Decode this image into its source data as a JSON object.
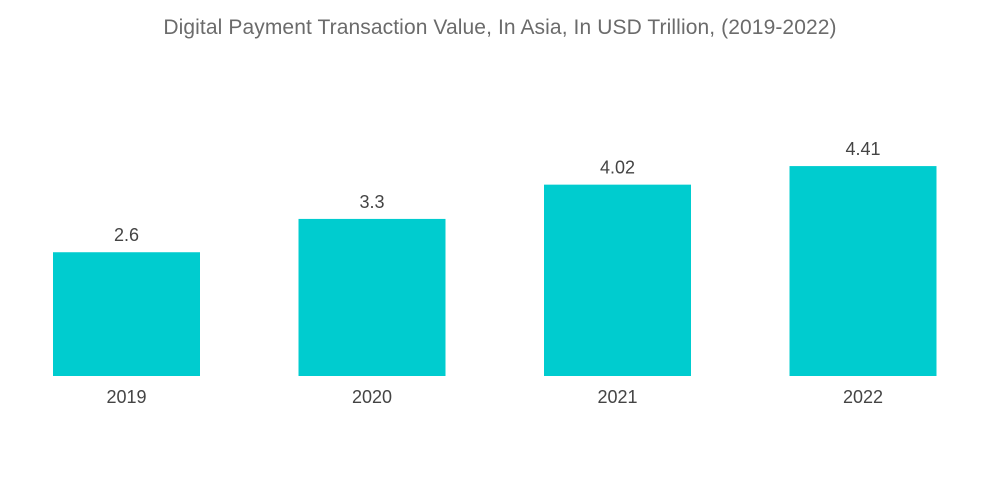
{
  "chart_data": {
    "type": "bar",
    "title": "Digital Payment Transaction Value, In Asia, In USD Trillion, (2019-2022)",
    "categories": [
      "2019",
      "2020",
      "2021",
      "2022"
    ],
    "values": [
      2.6,
      3.3,
      4.02,
      4.41
    ],
    "value_labels": [
      "2.6",
      "3.3",
      "4.02",
      "4.41"
    ],
    "xlabel": "",
    "ylabel": "",
    "ylim": [
      0,
      5.5
    ],
    "grid": false,
    "legend": "none",
    "bar_color": "#00cccf"
  }
}
